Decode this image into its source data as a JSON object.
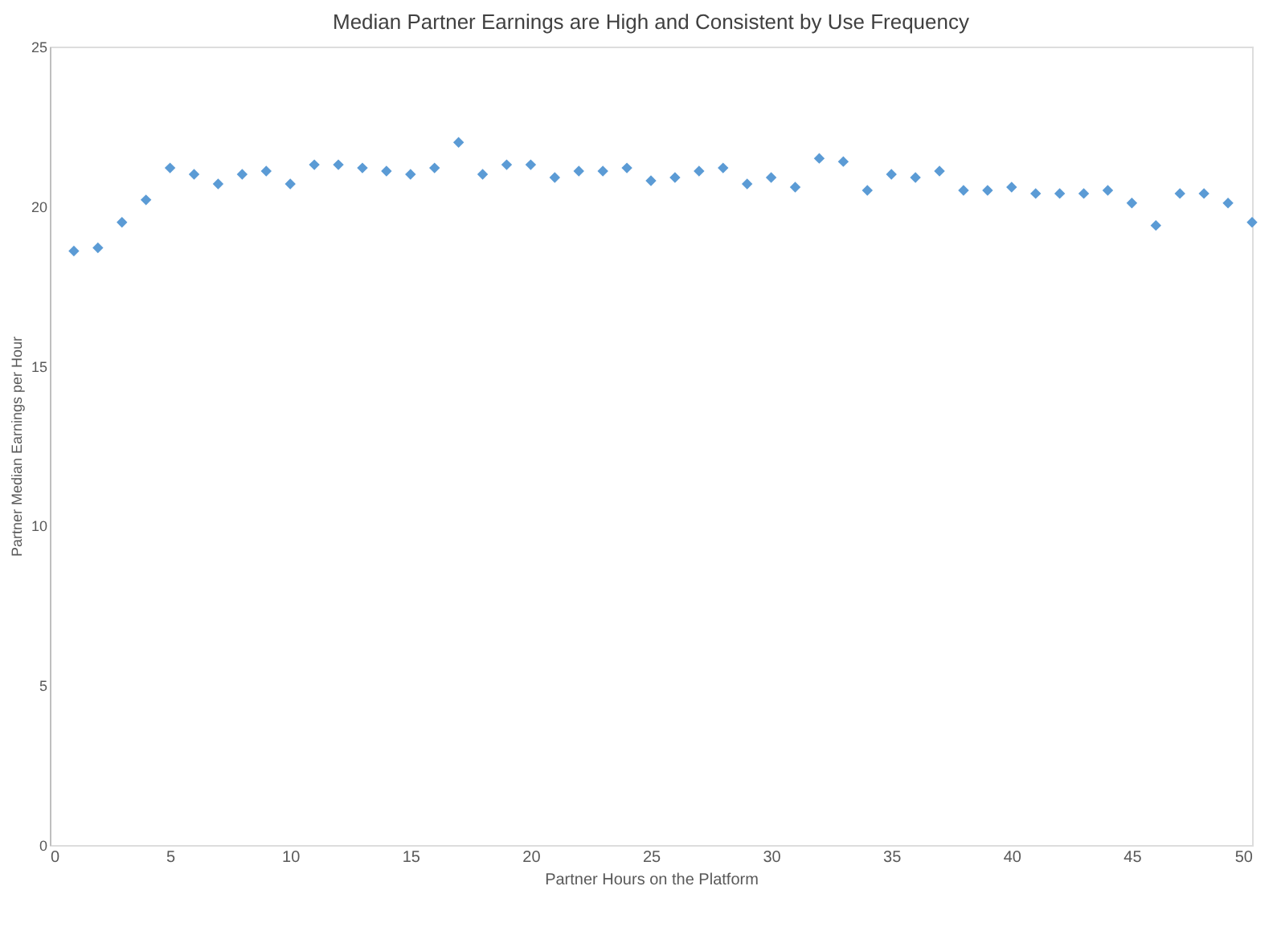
{
  "chart_data": {
    "type": "scatter",
    "title": "Median Partner Earnings are High and Consistent by Use Frequency",
    "xlabel": "Partner Hours on the Platform",
    "ylabel": "Partner Median Earnings per Hour",
    "x": [
      1,
      2,
      3,
      4,
      5,
      6,
      7,
      8,
      9,
      10,
      11,
      12,
      13,
      14,
      15,
      16,
      17,
      18,
      19,
      20,
      21,
      22,
      23,
      24,
      25,
      26,
      27,
      28,
      29,
      30,
      31,
      32,
      33,
      34,
      35,
      36,
      37,
      38,
      39,
      40,
      41,
      42,
      43,
      44,
      45,
      46,
      47,
      48,
      49,
      50
    ],
    "series": [
      {
        "color": "#5b9bd5",
        "values": [
          18.6,
          18.7,
          19.5,
          20.2,
          21.2,
          21.0,
          20.7,
          21.0,
          21.1,
          20.7,
          21.3,
          21.3,
          21.2,
          21.1,
          21.0,
          21.2,
          22.0,
          21.0,
          21.3,
          21.3,
          20.9,
          21.1,
          21.1,
          21.2,
          20.8,
          20.9,
          21.1,
          21.2,
          20.7,
          20.9,
          20.6,
          21.5,
          21.4,
          20.5,
          21.0,
          20.9,
          21.1,
          20.5,
          20.5,
          20.6,
          20.4,
          20.4,
          20.4,
          20.5,
          20.1,
          19.4,
          20.4,
          20.4,
          20.1,
          19.5
        ]
      }
    ],
    "xlim": [
      0,
      50
    ],
    "xticks": [
      0,
      5,
      10,
      15,
      20,
      25,
      30,
      35,
      40,
      45,
      50
    ],
    "ylim": [
      0,
      25
    ],
    "yticks": [
      0,
      5,
      10,
      15,
      20,
      25
    ],
    "grid": false,
    "marker": "diamond"
  }
}
